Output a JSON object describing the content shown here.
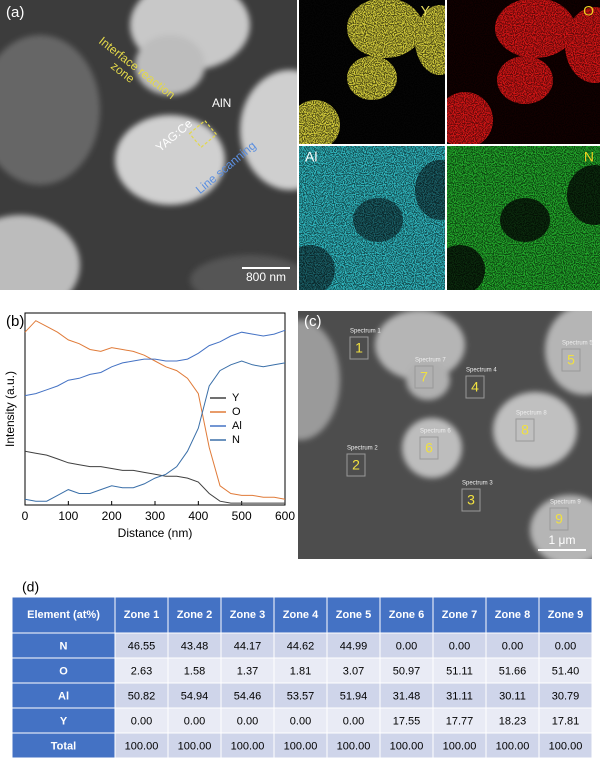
{
  "panel_labels": [
    "(a)",
    "(b)",
    "(c)",
    "(d)"
  ],
  "panel_a": {
    "annotations": [
      "Interface reaction",
      "zone",
      "AlN",
      "YAG:Ce",
      "Line scanning"
    ],
    "scale_bar": "800 nm",
    "maps": [
      "Y",
      "O",
      "Al",
      "N"
    ]
  },
  "chart_data": {
    "type": "line",
    "x_label": "Distance (nm)",
    "y_label": "Intensity (a.u.)",
    "x": [
      0,
      25,
      50,
      75,
      100,
      125,
      150,
      175,
      200,
      225,
      250,
      275,
      300,
      325,
      350,
      375,
      400,
      425,
      450,
      475,
      500,
      525,
      550,
      575,
      600
    ],
    "xlim": [
      0,
      600
    ],
    "xticks": [
      0,
      100,
      200,
      300,
      400,
      500,
      600
    ],
    "ylim": [
      0,
      100
    ],
    "legend": "right",
    "series": [
      {
        "name": "Y",
        "color": "#404040",
        "values": [
          28,
          27,
          26,
          24,
          22,
          21,
          20,
          20,
          19,
          18,
          18,
          17,
          16,
          15,
          15,
          14,
          12,
          6,
          2,
          1,
          1,
          1,
          1,
          1,
          1
        ]
      },
      {
        "name": "O",
        "color": "#e07b39",
        "values": [
          90,
          96,
          93,
          90,
          86,
          84,
          81,
          80,
          82,
          81,
          80,
          78,
          75,
          72,
          70,
          66,
          58,
          30,
          10,
          6,
          5,
          5,
          4,
          4,
          3
        ]
      },
      {
        "name": "Al",
        "color": "#4472c4",
        "values": [
          57,
          58,
          60,
          62,
          65,
          66,
          68,
          69,
          72,
          74,
          75,
          76,
          76,
          75,
          75,
          76,
          79,
          83,
          85,
          88,
          90,
          89,
          88,
          89,
          91
        ]
      },
      {
        "name": "N",
        "color": "#3a6fa8",
        "values": [
          3,
          2,
          2,
          5,
          8,
          6,
          6,
          8,
          10,
          9,
          9,
          11,
          14,
          16,
          20,
          28,
          40,
          62,
          70,
          73,
          75,
          73,
          72,
          73,
          74
        ]
      }
    ]
  },
  "panel_c": {
    "spectra": [
      {
        "name": "Spectrum 1",
        "number": "1"
      },
      {
        "name": "Spectrum 2",
        "number": "2"
      },
      {
        "name": "Spectrum 3",
        "number": "3"
      },
      {
        "name": "Spectrum 4",
        "number": "4"
      },
      {
        "name": "Spectrum 5",
        "number": "5"
      },
      {
        "name": "Spectrum 6",
        "number": "6"
      },
      {
        "name": "Spectrum 7",
        "number": "7"
      },
      {
        "name": "Spectrum 8",
        "number": "8"
      },
      {
        "name": "Spectrum 9",
        "number": "9"
      }
    ],
    "scale_bar": "1 μm"
  },
  "table": {
    "header": [
      "Element (at%)",
      "Zone 1",
      "Zone 2",
      "Zone 3",
      "Zone 4",
      "Zone 5",
      "Zone 6",
      "Zone 7",
      "Zone 8",
      "Zone 9"
    ],
    "rows": [
      [
        "N",
        "46.55",
        "43.48",
        "44.17",
        "44.62",
        "44.99",
        "0.00",
        "0.00",
        "0.00",
        "0.00"
      ],
      [
        "O",
        "2.63",
        "1.58",
        "1.37",
        "1.81",
        "3.07",
        "50.97",
        "51.11",
        "51.66",
        "51.40"
      ],
      [
        "Al",
        "50.82",
        "54.94",
        "54.46",
        "53.57",
        "51.94",
        "31.48",
        "31.11",
        "30.11",
        "30.79"
      ],
      [
        "Y",
        "0.00",
        "0.00",
        "0.00",
        "0.00",
        "0.00",
        "17.55",
        "17.77",
        "18.23",
        "17.81"
      ],
      [
        "Total",
        "100.00",
        "100.00",
        "100.00",
        "100.00",
        "100.00",
        "100.00",
        "100.00",
        "100.00",
        "100.00"
      ]
    ]
  }
}
